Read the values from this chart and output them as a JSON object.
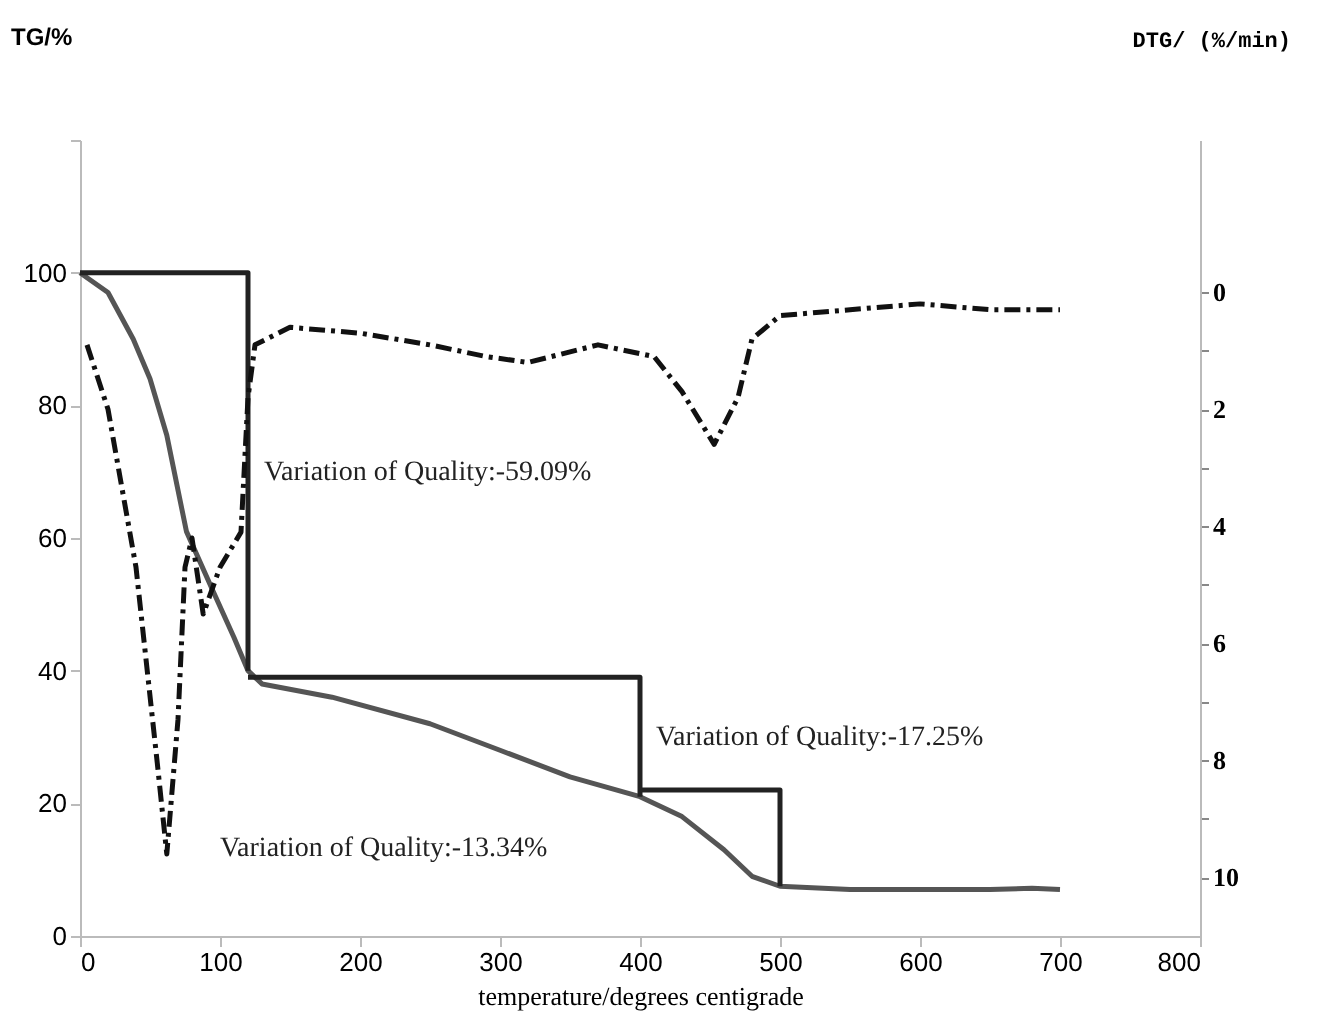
{
  "chart_data": {
    "type": "line",
    "xlabel": "temperature/degrees centigrade",
    "ylabel": "TG/%",
    "y2label": "DTG/ (%/min)",
    "xlim": [
      0,
      800
    ],
    "xticks": [
      0,
      100,
      200,
      300,
      400,
      500,
      600,
      700,
      800
    ],
    "ylim": [
      0,
      120
    ],
    "yticks": [
      0,
      20,
      40,
      60,
      80,
      100,
      {
        "value": 120,
        "label": null
      }
    ],
    "y2lim": [
      11,
      -2.6
    ],
    "y2ticks": [
      0,
      {
        "value": 1,
        "label": null
      },
      2,
      {
        "value": 3,
        "label": null
      },
      4,
      {
        "value": 5,
        "label": null
      },
      6,
      {
        "value": 7,
        "label": null
      },
      8,
      {
        "value": 9,
        "label": null
      },
      10
    ],
    "grid": false,
    "series": [
      {
        "color": "#555555",
        "line_style": "solid",
        "x": [
          0,
          20,
          38,
          50,
          62,
          76,
          95,
          110,
          120,
          130,
          180,
          250,
          300,
          350,
          400,
          430,
          460,
          480,
          500,
          550,
          650,
          680,
          700
        ],
        "values": [
          100,
          97,
          90,
          84,
          75.5,
          61,
          52,
          45,
          40,
          38,
          36,
          32,
          28,
          24,
          21,
          18,
          13,
          9,
          7.5,
          7,
          7,
          7.2,
          7
        ]
      },
      {
        "color": "#111111",
        "line_style": "dashed",
        "axis": "y2",
        "x": [
          5,
          20,
          40,
          55,
          62,
          70,
          75,
          80,
          88,
          100,
          115,
          120,
          125,
          150,
          200,
          250,
          290,
          320,
          370,
          410,
          430,
          453,
          470,
          480,
          500,
          550,
          600,
          650,
          700
        ],
        "values": [
          0.9,
          2.0,
          4.7,
          8,
          9.6,
          7.3,
          4.7,
          4.2,
          5.5,
          4.7,
          4.1,
          1.8,
          0.9,
          0.6,
          0.7,
          0.9,
          1.1,
          1.2,
          0.9,
          1.1,
          1.7,
          2.6,
          1.8,
          0.8,
          0.4,
          0.3,
          0.2,
          0.3,
          0.3
        ]
      },
      {
        "color": "#222222",
        "line_style": "solid",
        "x": [
          0,
          120,
          120
        ],
        "values": [
          100,
          100,
          40
        ]
      },
      {
        "color": "#222222",
        "line_style": "solid",
        "x": [
          120,
          400,
          400
        ],
        "values": [
          39,
          39,
          21
        ]
      },
      {
        "color": "#222222",
        "line_style": "solid",
        "x": [
          400,
          500,
          500
        ],
        "values": [
          22,
          22,
          7.5
        ]
      }
    ],
    "annotations": [
      {
        "text": "Variation of Quality:-59.09%",
        "x": 120,
        "y": 70
      },
      {
        "text": "Variation of Quality:-17.25%",
        "x": 400,
        "y": 30
      },
      "Variation of Quality:-13.34%"
    ]
  }
}
